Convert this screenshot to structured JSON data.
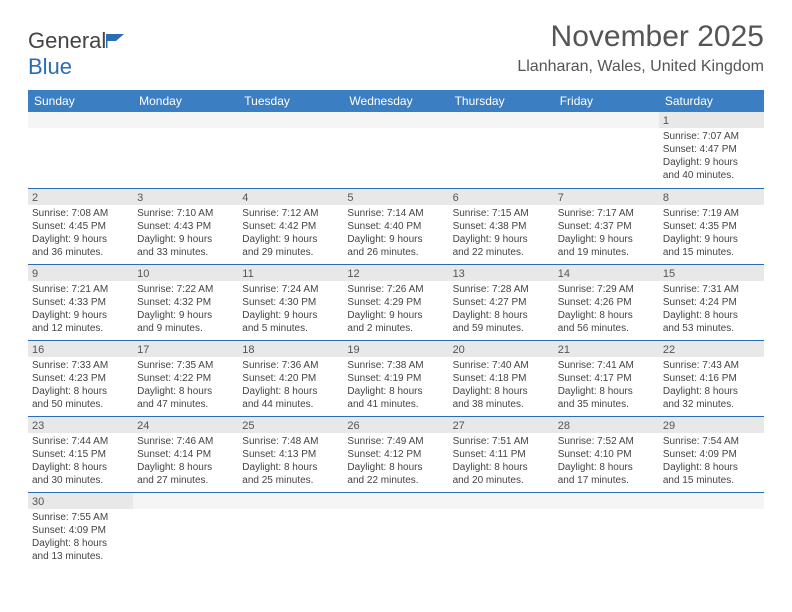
{
  "logo": {
    "text1": "General",
    "text2": "Blue"
  },
  "title": "November 2025",
  "location": "Llanharan, Wales, United Kingdom",
  "colors": {
    "header_bg": "#3b7ec1",
    "header_text": "#ffffff",
    "daynum_bg": "#e8e8e8",
    "border": "#2a6db0",
    "text": "#444444",
    "title_text": "#555555"
  },
  "weekdays": [
    "Sunday",
    "Monday",
    "Tuesday",
    "Wednesday",
    "Thursday",
    "Friday",
    "Saturday"
  ],
  "weeks": [
    [
      {
        "day": "",
        "sunrise": "",
        "sunset": "",
        "daylight1": "",
        "daylight2": ""
      },
      {
        "day": "",
        "sunrise": "",
        "sunset": "",
        "daylight1": "",
        "daylight2": ""
      },
      {
        "day": "",
        "sunrise": "",
        "sunset": "",
        "daylight1": "",
        "daylight2": ""
      },
      {
        "day": "",
        "sunrise": "",
        "sunset": "",
        "daylight1": "",
        "daylight2": ""
      },
      {
        "day": "",
        "sunrise": "",
        "sunset": "",
        "daylight1": "",
        "daylight2": ""
      },
      {
        "day": "",
        "sunrise": "",
        "sunset": "",
        "daylight1": "",
        "daylight2": ""
      },
      {
        "day": "1",
        "sunrise": "Sunrise: 7:07 AM",
        "sunset": "Sunset: 4:47 PM",
        "daylight1": "Daylight: 9 hours",
        "daylight2": "and 40 minutes."
      }
    ],
    [
      {
        "day": "2",
        "sunrise": "Sunrise: 7:08 AM",
        "sunset": "Sunset: 4:45 PM",
        "daylight1": "Daylight: 9 hours",
        "daylight2": "and 36 minutes."
      },
      {
        "day": "3",
        "sunrise": "Sunrise: 7:10 AM",
        "sunset": "Sunset: 4:43 PM",
        "daylight1": "Daylight: 9 hours",
        "daylight2": "and 33 minutes."
      },
      {
        "day": "4",
        "sunrise": "Sunrise: 7:12 AM",
        "sunset": "Sunset: 4:42 PM",
        "daylight1": "Daylight: 9 hours",
        "daylight2": "and 29 minutes."
      },
      {
        "day": "5",
        "sunrise": "Sunrise: 7:14 AM",
        "sunset": "Sunset: 4:40 PM",
        "daylight1": "Daylight: 9 hours",
        "daylight2": "and 26 minutes."
      },
      {
        "day": "6",
        "sunrise": "Sunrise: 7:15 AM",
        "sunset": "Sunset: 4:38 PM",
        "daylight1": "Daylight: 9 hours",
        "daylight2": "and 22 minutes."
      },
      {
        "day": "7",
        "sunrise": "Sunrise: 7:17 AM",
        "sunset": "Sunset: 4:37 PM",
        "daylight1": "Daylight: 9 hours",
        "daylight2": "and 19 minutes."
      },
      {
        "day": "8",
        "sunrise": "Sunrise: 7:19 AM",
        "sunset": "Sunset: 4:35 PM",
        "daylight1": "Daylight: 9 hours",
        "daylight2": "and 15 minutes."
      }
    ],
    [
      {
        "day": "9",
        "sunrise": "Sunrise: 7:21 AM",
        "sunset": "Sunset: 4:33 PM",
        "daylight1": "Daylight: 9 hours",
        "daylight2": "and 12 minutes."
      },
      {
        "day": "10",
        "sunrise": "Sunrise: 7:22 AM",
        "sunset": "Sunset: 4:32 PM",
        "daylight1": "Daylight: 9 hours",
        "daylight2": "and 9 minutes."
      },
      {
        "day": "11",
        "sunrise": "Sunrise: 7:24 AM",
        "sunset": "Sunset: 4:30 PM",
        "daylight1": "Daylight: 9 hours",
        "daylight2": "and 5 minutes."
      },
      {
        "day": "12",
        "sunrise": "Sunrise: 7:26 AM",
        "sunset": "Sunset: 4:29 PM",
        "daylight1": "Daylight: 9 hours",
        "daylight2": "and 2 minutes."
      },
      {
        "day": "13",
        "sunrise": "Sunrise: 7:28 AM",
        "sunset": "Sunset: 4:27 PM",
        "daylight1": "Daylight: 8 hours",
        "daylight2": "and 59 minutes."
      },
      {
        "day": "14",
        "sunrise": "Sunrise: 7:29 AM",
        "sunset": "Sunset: 4:26 PM",
        "daylight1": "Daylight: 8 hours",
        "daylight2": "and 56 minutes."
      },
      {
        "day": "15",
        "sunrise": "Sunrise: 7:31 AM",
        "sunset": "Sunset: 4:24 PM",
        "daylight1": "Daylight: 8 hours",
        "daylight2": "and 53 minutes."
      }
    ],
    [
      {
        "day": "16",
        "sunrise": "Sunrise: 7:33 AM",
        "sunset": "Sunset: 4:23 PM",
        "daylight1": "Daylight: 8 hours",
        "daylight2": "and 50 minutes."
      },
      {
        "day": "17",
        "sunrise": "Sunrise: 7:35 AM",
        "sunset": "Sunset: 4:22 PM",
        "daylight1": "Daylight: 8 hours",
        "daylight2": "and 47 minutes."
      },
      {
        "day": "18",
        "sunrise": "Sunrise: 7:36 AM",
        "sunset": "Sunset: 4:20 PM",
        "daylight1": "Daylight: 8 hours",
        "daylight2": "and 44 minutes."
      },
      {
        "day": "19",
        "sunrise": "Sunrise: 7:38 AM",
        "sunset": "Sunset: 4:19 PM",
        "daylight1": "Daylight: 8 hours",
        "daylight2": "and 41 minutes."
      },
      {
        "day": "20",
        "sunrise": "Sunrise: 7:40 AM",
        "sunset": "Sunset: 4:18 PM",
        "daylight1": "Daylight: 8 hours",
        "daylight2": "and 38 minutes."
      },
      {
        "day": "21",
        "sunrise": "Sunrise: 7:41 AM",
        "sunset": "Sunset: 4:17 PM",
        "daylight1": "Daylight: 8 hours",
        "daylight2": "and 35 minutes."
      },
      {
        "day": "22",
        "sunrise": "Sunrise: 7:43 AM",
        "sunset": "Sunset: 4:16 PM",
        "daylight1": "Daylight: 8 hours",
        "daylight2": "and 32 minutes."
      }
    ],
    [
      {
        "day": "23",
        "sunrise": "Sunrise: 7:44 AM",
        "sunset": "Sunset: 4:15 PM",
        "daylight1": "Daylight: 8 hours",
        "daylight2": "and 30 minutes."
      },
      {
        "day": "24",
        "sunrise": "Sunrise: 7:46 AM",
        "sunset": "Sunset: 4:14 PM",
        "daylight1": "Daylight: 8 hours",
        "daylight2": "and 27 minutes."
      },
      {
        "day": "25",
        "sunrise": "Sunrise: 7:48 AM",
        "sunset": "Sunset: 4:13 PM",
        "daylight1": "Daylight: 8 hours",
        "daylight2": "and 25 minutes."
      },
      {
        "day": "26",
        "sunrise": "Sunrise: 7:49 AM",
        "sunset": "Sunset: 4:12 PM",
        "daylight1": "Daylight: 8 hours",
        "daylight2": "and 22 minutes."
      },
      {
        "day": "27",
        "sunrise": "Sunrise: 7:51 AM",
        "sunset": "Sunset: 4:11 PM",
        "daylight1": "Daylight: 8 hours",
        "daylight2": "and 20 minutes."
      },
      {
        "day": "28",
        "sunrise": "Sunrise: 7:52 AM",
        "sunset": "Sunset: 4:10 PM",
        "daylight1": "Daylight: 8 hours",
        "daylight2": "and 17 minutes."
      },
      {
        "day": "29",
        "sunrise": "Sunrise: 7:54 AM",
        "sunset": "Sunset: 4:09 PM",
        "daylight1": "Daylight: 8 hours",
        "daylight2": "and 15 minutes."
      }
    ],
    [
      {
        "day": "30",
        "sunrise": "Sunrise: 7:55 AM",
        "sunset": "Sunset: 4:09 PM",
        "daylight1": "Daylight: 8 hours",
        "daylight2": "and 13 minutes."
      },
      {
        "day": "",
        "sunrise": "",
        "sunset": "",
        "daylight1": "",
        "daylight2": ""
      },
      {
        "day": "",
        "sunrise": "",
        "sunset": "",
        "daylight1": "",
        "daylight2": ""
      },
      {
        "day": "",
        "sunrise": "",
        "sunset": "",
        "daylight1": "",
        "daylight2": ""
      },
      {
        "day": "",
        "sunrise": "",
        "sunset": "",
        "daylight1": "",
        "daylight2": ""
      },
      {
        "day": "",
        "sunrise": "",
        "sunset": "",
        "daylight1": "",
        "daylight2": ""
      },
      {
        "day": "",
        "sunrise": "",
        "sunset": "",
        "daylight1": "",
        "daylight2": ""
      }
    ]
  ]
}
